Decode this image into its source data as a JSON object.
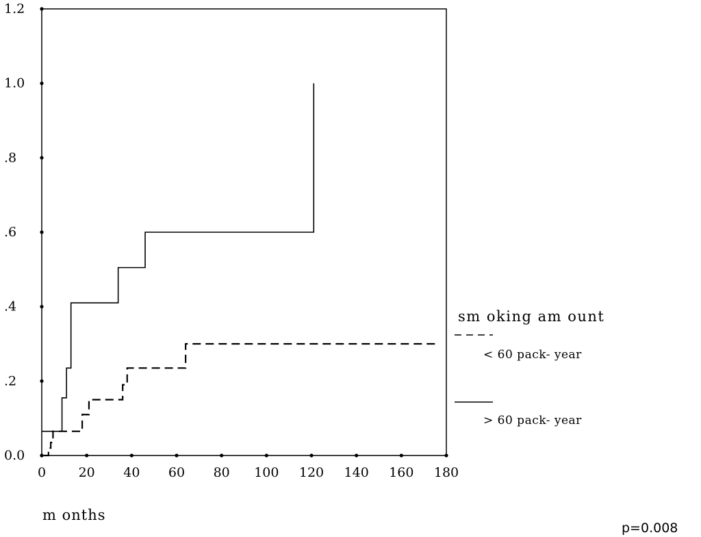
{
  "chart_data": {
    "type": "line",
    "xlabel": "m onths",
    "ylabel": "",
    "xlim": [
      0,
      180
    ],
    "ylim": [
      0,
      1.2
    ],
    "x_ticks": [
      0,
      20,
      40,
      60,
      80,
      100,
      120,
      140,
      160,
      180
    ],
    "x_tick_labels": [
      "0",
      "20",
      "40",
      "60",
      "80",
      "100",
      "120",
      "140",
      "160",
      "180"
    ],
    "y_ticks": [
      0,
      0.2,
      0.4,
      0.6,
      0.8,
      1.0,
      1.2
    ],
    "y_tick_labels": [
      "0.0",
      ".2",
      ".4",
      ".6",
      ".8",
      "1.0",
      "1.2"
    ],
    "grid": false,
    "legend": {
      "title": "sm oking am ount",
      "placement": "right"
    },
    "series": [
      {
        "name": "< 60 pack- year",
        "style": "dashed",
        "step": true,
        "x": [
          1,
          3,
          4,
          5,
          12,
          18,
          21,
          33,
          36,
          38,
          48,
          63,
          64,
          90,
          120,
          150,
          175
        ],
        "y": [
          0.0,
          0.02,
          0.035,
          0.065,
          0.065,
          0.11,
          0.15,
          0.15,
          0.19,
          0.235,
          0.235,
          0.235,
          0.3,
          0.3,
          0.3,
          0.3,
          0.3
        ]
      },
      {
        "name": "> 60 pack- year",
        "style": "solid",
        "step": true,
        "x": [
          0,
          8,
          9,
          11,
          13,
          20,
          32,
          34,
          45,
          46,
          70,
          100,
          121,
          121
        ],
        "y": [
          0.065,
          0.065,
          0.155,
          0.235,
          0.41,
          0.41,
          0.41,
          0.505,
          0.505,
          0.6,
          0.6,
          0.6,
          0.6,
          1.0
        ]
      }
    ],
    "annotations": [
      "p=0.008"
    ]
  }
}
